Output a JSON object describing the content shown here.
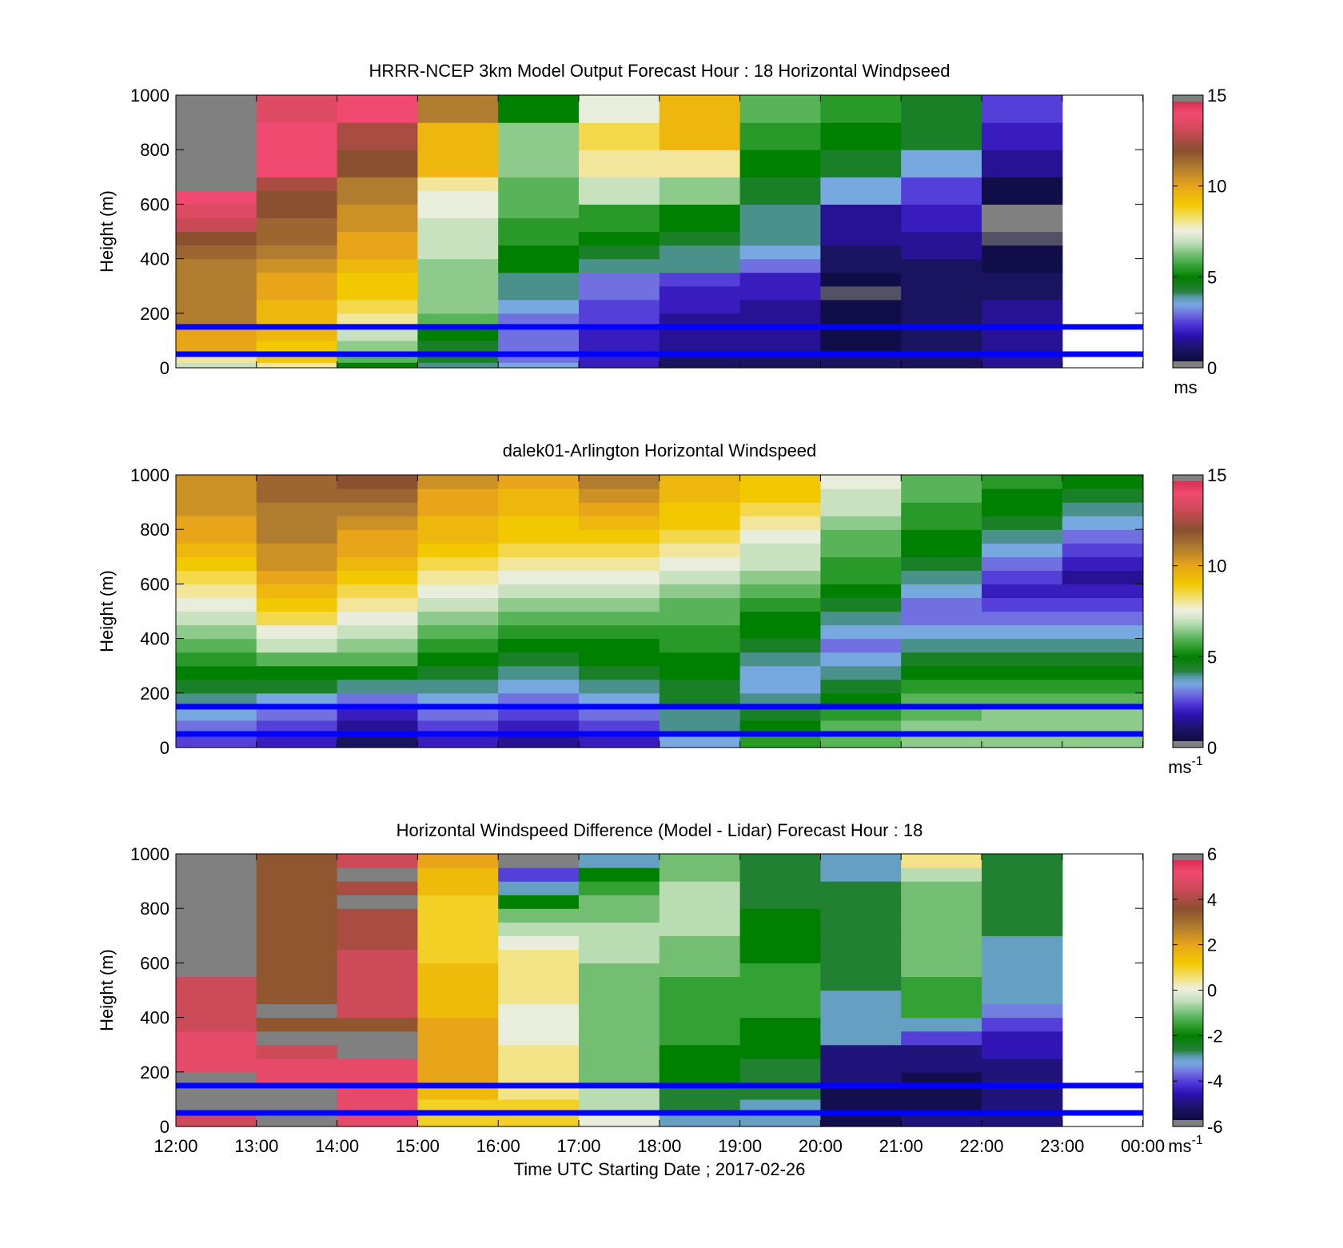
{
  "chart_data": [
    {
      "type": "heatmap",
      "title": "HRRR-NCEP 3km Model Output   Forecast Hour : 18 Horizontal Windpseed",
      "ylabel": "Height (m)",
      "ylim": [
        0,
        1000
      ],
      "yticks": [
        "0",
        "200",
        "400",
        "600",
        "800",
        "1000"
      ],
      "xlim": [
        "12:00",
        "00:00"
      ],
      "colorbar": {
        "ticks": [
          "0",
          "5",
          "10",
          "15"
        ],
        "range": [
          0,
          15
        ],
        "unit": "ms"
      },
      "hlines": [
        150,
        50
      ],
      "row_heights": [
        20,
        50,
        100,
        150,
        200,
        250,
        300,
        350,
        400,
        450,
        500,
        550,
        600,
        650,
        700,
        800,
        900,
        1000
      ],
      "columns": [
        {
          "time": "12:00",
          "values": [
            7,
            8,
            10,
            10,
            11,
            11,
            11,
            11,
            11,
            11.5,
            12,
            13,
            13.5,
            14,
            15.5,
            15.5,
            15.5,
            15.5
          ]
        },
        {
          "time": "13:00",
          "values": [
            8,
            9,
            9,
            9.5,
            9.5,
            9.5,
            10,
            10,
            10.5,
            11,
            11.5,
            11.5,
            12,
            12,
            12.5,
            14,
            14,
            13.5
          ]
        },
        {
          "time": "14:00",
          "values": [
            5,
            6,
            6.5,
            7,
            8,
            8.5,
            9,
            9,
            9.5,
            10,
            10,
            10.5,
            10.5,
            11,
            11,
            12,
            12.5,
            14
          ]
        },
        {
          "time": "15:00",
          "values": [
            4,
            4.5,
            4.5,
            5,
            6,
            6.5,
            6.5,
            6.5,
            6.5,
            7,
            7,
            7,
            7.5,
            7.5,
            8,
            9.5,
            9.5,
            11
          ]
        },
        {
          "time": "16:00",
          "values": [
            3.5,
            3,
            3,
            3,
            3,
            3.5,
            4,
            4,
            5,
            5,
            5.5,
            5.5,
            6,
            6,
            6,
            6.5,
            6.5,
            5
          ]
        },
        {
          "time": "17:00",
          "values": [
            2,
            2,
            2,
            2,
            2.5,
            2.5,
            3,
            3,
            4,
            4.5,
            5,
            5.5,
            5.5,
            7,
            7,
            8,
            8.5,
            7.5
          ]
        },
        {
          "time": "18:00",
          "values": [
            1,
            1,
            1.5,
            1.5,
            1.5,
            2,
            2,
            2.5,
            4,
            4,
            4.5,
            5,
            5,
            6.5,
            6.5,
            8,
            9.5,
            9.5
          ]
        },
        {
          "time": "19:00",
          "values": [
            1,
            1,
            1.5,
            1.5,
            1.5,
            1.5,
            2,
            2,
            3,
            3.5,
            4,
            4,
            4,
            4.5,
            4.5,
            5,
            5.5,
            6
          ]
        },
        {
          "time": "20:00",
          "values": [
            1,
            1,
            0.5,
            0.5,
            0.5,
            0.5,
            0.1,
            0.5,
            1,
            1,
            1.5,
            1.5,
            1.5,
            3.5,
            3.5,
            4.5,
            5,
            5.5
          ]
        },
        {
          "time": "21:00",
          "values": [
            1,
            1,
            1,
            1,
            1,
            1,
            1,
            1,
            1,
            1.5,
            1.5,
            2,
            2,
            2.5,
            2.5,
            3.5,
            4.5,
            4.5
          ]
        },
        {
          "time": "22:00",
          "values": [
            1.5,
            1.5,
            1.5,
            1.5,
            1.5,
            1.5,
            1,
            1,
            0.5,
            0.5,
            0.1,
            15.5,
            15.5,
            0.5,
            0.5,
            1.5,
            2,
            2.5
          ]
        }
      ]
    },
    {
      "type": "heatmap",
      "title": "dalek01-Arlington  Horizontal Windspeed",
      "ylabel": "Height (m)",
      "ylim": [
        0,
        1000
      ],
      "yticks": [
        "0",
        "200",
        "400",
        "600",
        "800",
        "1000"
      ],
      "xlim": [
        "12:00",
        "00:00"
      ],
      "colorbar": {
        "ticks": [
          "0",
          "5",
          "10",
          "15"
        ],
        "range": [
          0,
          15
        ],
        "unit": "ms",
        "unit_sup": "-1"
      },
      "hlines": [
        150,
        50
      ],
      "row_heights": [
        50,
        100,
        150,
        200,
        250,
        300,
        350,
        400,
        450,
        500,
        550,
        600,
        650,
        700,
        750,
        800,
        850,
        900,
        950,
        1000
      ],
      "columns": [
        {
          "time": "12:00",
          "values": [
            2.5,
            3,
            3.5,
            4,
            4.5,
            5,
            5.5,
            6,
            6.5,
            7,
            7.5,
            8,
            8.5,
            9,
            9.5,
            10,
            10,
            10.5,
            10.5,
            10.5
          ]
        },
        {
          "time": "13:00",
          "values": [
            2,
            2.5,
            3,
            3.5,
            4.5,
            5,
            6,
            7,
            7.5,
            8.5,
            9,
            9.5,
            10,
            10.5,
            10.5,
            11,
            11,
            11,
            11.5,
            11.5
          ]
        },
        {
          "time": "14:00",
          "values": [
            1,
            1.5,
            2,
            3,
            4,
            5,
            6,
            6.5,
            7,
            7.5,
            8,
            8.5,
            9,
            9.5,
            10,
            10,
            10.5,
            11,
            11.5,
            12
          ]
        },
        {
          "time": "15:00",
          "values": [
            2,
            2.5,
            3,
            3.5,
            4,
            4.5,
            5,
            5.5,
            6,
            6.5,
            7,
            7.5,
            8,
            8.5,
            9,
            9.5,
            9.5,
            10,
            10,
            10.5
          ]
        },
        {
          "time": "16:00",
          "values": [
            1.5,
            2,
            2.5,
            3,
            3.5,
            4,
            4.5,
            5,
            5.5,
            6,
            6.5,
            7,
            7.5,
            8,
            8.5,
            9,
            9,
            9.5,
            9.5,
            10
          ]
        },
        {
          "time": "17:00",
          "values": [
            2,
            2.5,
            3,
            3.5,
            4,
            4.5,
            5,
            5,
            5.5,
            6,
            6.5,
            7,
            7.5,
            8,
            8.5,
            9,
            9.5,
            10,
            10.5,
            11
          ]
        },
        {
          "time": "18:00",
          "values": [
            3.5,
            4,
            4,
            4.5,
            4.5,
            5,
            5,
            5.5,
            5.5,
            6,
            6,
            6.5,
            7,
            7.5,
            8,
            8.5,
            9,
            9,
            9.5,
            9.5
          ]
        },
        {
          "time": "19:00",
          "values": [
            5.5,
            5,
            4.5,
            4,
            3.5,
            3.5,
            4,
            4.5,
            5,
            5,
            5.5,
            6,
            6.5,
            7,
            7,
            7.5,
            8,
            8.5,
            9,
            9
          ]
        },
        {
          "time": "20:00",
          "values": [
            6,
            6,
            5.5,
            5,
            4.5,
            4,
            3.5,
            3,
            3.5,
            4,
            4.5,
            5,
            5.5,
            5.5,
            6,
            6,
            6.5,
            7,
            7,
            7.5
          ]
        },
        {
          "time": "21:00",
          "values": [
            6.5,
            6.5,
            6,
            6,
            5.5,
            5,
            4.5,
            4,
            3.5,
            3,
            3,
            3.5,
            4,
            4.5,
            5,
            5,
            5.5,
            5.5,
            6,
            6
          ]
        },
        {
          "time": "22:00",
          "values": [
            6.5,
            6.5,
            6.5,
            6,
            5.5,
            5,
            4.5,
            4,
            3.5,
            3,
            2.5,
            2,
            2.5,
            3,
            3.5,
            4,
            4.5,
            5,
            5,
            5.5
          ]
        },
        {
          "time": "23:00",
          "values": [
            6.5,
            6.5,
            6.5,
            6,
            5.5,
            5,
            4.5,
            4,
            3.5,
            3,
            2.5,
            2,
            1.5,
            2,
            2.5,
            3,
            3.5,
            4,
            4.5,
            5
          ]
        }
      ]
    },
    {
      "type": "heatmap",
      "title": "Horizontal Windspeed Difference (Model - Lidar) Forecast Hour : 18",
      "xlabel": "Time UTC  Starting Date ; 2017-02-26",
      "ylabel": "Height (m)",
      "ylim": [
        0,
        1000
      ],
      "yticks": [
        "0",
        "200",
        "400",
        "600",
        "800",
        "1000"
      ],
      "xticks": [
        "12:00",
        "13:00",
        "14:00",
        "15:00",
        "16:00",
        "17:00",
        "18:00",
        "19:00",
        "20:00",
        "21:00",
        "22:00",
        "23:00",
        "00:00"
      ],
      "colorbar": {
        "ticks": [
          "-6",
          "-4",
          "-2",
          "0",
          "2",
          "4",
          "6"
        ],
        "range": [
          -6,
          6
        ],
        "unit": "ms",
        "unit_sup": "-1"
      },
      "hlines": [
        150,
        50
      ],
      "row_heights": [
        50,
        100,
        150,
        200,
        250,
        300,
        350,
        400,
        450,
        500,
        550,
        600,
        650,
        700,
        750,
        800,
        850,
        900,
        950,
        1000
      ],
      "columns": [
        {
          "time": "12:00",
          "values": [
            4.5,
            6.5,
            6.5,
            6.5,
            5,
            5,
            5,
            4.5,
            4.5,
            4.5,
            4.5,
            6.5,
            6.5,
            6.5,
            6.5,
            6.5,
            6.5,
            6.5,
            6.5,
            6.5
          ]
        },
        {
          "time": "13:00",
          "values": [
            6.5,
            6.5,
            6.5,
            5,
            5,
            4.5,
            6.5,
            3.5,
            6.5,
            3.5,
            3.5,
            3.5,
            3.5,
            3.5,
            3.5,
            3.5,
            3.5,
            3.5,
            3.5,
            3.5
          ]
        },
        {
          "time": "14:00",
          "values": [
            5,
            5,
            5,
            5,
            5,
            6.5,
            6.5,
            3.5,
            4.5,
            4.5,
            4.5,
            4.5,
            4.5,
            4,
            4,
            4,
            6.5,
            4,
            6.5,
            4.5
          ]
        },
        {
          "time": "15:00",
          "values": [
            1,
            1,
            1.5,
            2,
            2,
            2,
            2,
            2,
            1.5,
            1.5,
            1.5,
            1.5,
            1,
            1,
            1,
            1,
            1,
            1.5,
            1.5,
            2
          ]
        },
        {
          "time": "16:00",
          "values": [
            1,
            1,
            0.5,
            0.5,
            0.5,
            0.5,
            0,
            0,
            0,
            0.5,
            0.5,
            0.5,
            0.5,
            0,
            -0.5,
            -1,
            -2,
            -3,
            -4,
            6.5
          ]
        },
        {
          "time": "17:00",
          "values": [
            0,
            -0.5,
            -0.5,
            -1,
            -1,
            -1,
            -1,
            -1,
            -1,
            -1,
            -1,
            -1,
            -0.5,
            -0.5,
            -0.5,
            -1,
            -1,
            -1.5,
            -2,
            -3
          ]
        },
        {
          "time": "18:00",
          "values": [
            -3,
            -2.5,
            -2.5,
            -2,
            -2,
            -2,
            -1.5,
            -1.5,
            -1.5,
            -1.5,
            -1.5,
            -1,
            -1,
            -1,
            -0.5,
            -0.5,
            -0.5,
            -0.5,
            -1,
            -1
          ]
        },
        {
          "time": "19:00",
          "values": [
            -3,
            -3,
            -2.5,
            -2.5,
            -2.5,
            -2,
            -2,
            -2,
            -1.5,
            -1.5,
            -1.5,
            -1.5,
            -2,
            -2,
            -2,
            -2,
            -2.5,
            -2.5,
            -2.5,
            -2.5
          ]
        },
        {
          "time": "20:00",
          "values": [
            -5.5,
            -5.5,
            -5.5,
            -5,
            -5,
            -5,
            -3,
            -3,
            -3,
            -3,
            -2.5,
            -2.5,
            -2.5,
            -2.5,
            -2.5,
            -2.5,
            -2.5,
            -2.5,
            -3,
            -3
          ]
        },
        {
          "time": "21:00",
          "values": [
            -5,
            -5.5,
            -5.5,
            -5.5,
            -5,
            -5,
            -4,
            -3,
            -1.5,
            -1.5,
            -1.5,
            -1,
            -1,
            -1,
            -1,
            -1,
            -1,
            -1,
            -0.5,
            0.5
          ]
        },
        {
          "time": "22:00",
          "values": [
            -5,
            -5,
            -5,
            -5,
            -5,
            -4.5,
            -4.5,
            -4,
            -3.5,
            -3,
            -3,
            -3,
            -3,
            -3,
            -2.5,
            -2.5,
            -2.5,
            -2.5,
            -2.5,
            -2.5
          ]
        }
      ]
    }
  ]
}
